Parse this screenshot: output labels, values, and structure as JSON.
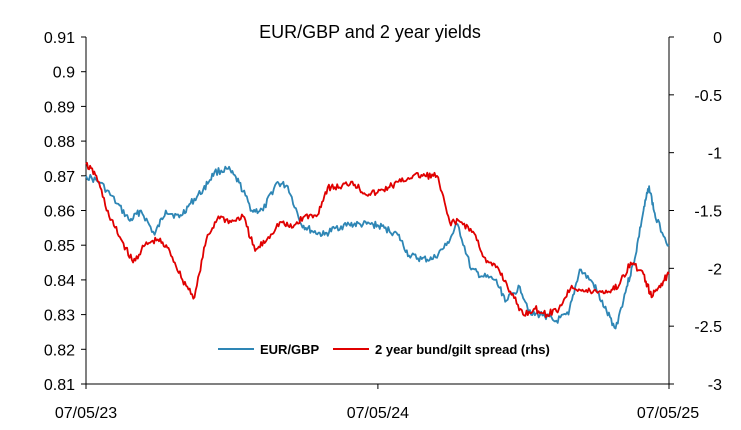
{
  "chart_data": {
    "type": "line",
    "title": "EUR/GBP and 2 year yields",
    "x_ticks": [
      "07/05/23",
      "07/05/24",
      "07/05/25"
    ],
    "x_range": [
      "07/05/23",
      "07/05/25"
    ],
    "y_left": {
      "ticks": [
        "0.91",
        "0.9",
        "0.89",
        "0.88",
        "0.87",
        "0.86",
        "0.85",
        "0.84",
        "0.83",
        "0.82",
        "0.81"
      ],
      "range": [
        0.81,
        0.91
      ]
    },
    "y_right": {
      "ticks": [
        "0",
        "-0.5",
        "-1",
        "-1.5",
        "-2",
        "-2.5",
        "-3"
      ],
      "range": [
        -3,
        0
      ]
    },
    "grid": false,
    "legend_position": "bottom-inside",
    "legend": [
      "EUR/GBP",
      "2 year bund/gilt spread (rhs)"
    ],
    "series": [
      {
        "name": "EUR/GBP",
        "axis": "left",
        "color": "#2E86B5",
        "points": [
          [
            "2023-05-07",
            0.87
          ],
          [
            "2023-05-25",
            0.868
          ],
          [
            "2023-06-15",
            0.862
          ],
          [
            "2023-07-01",
            0.857
          ],
          [
            "2023-07-15",
            0.86
          ],
          [
            "2023-08-01",
            0.853
          ],
          [
            "2023-08-15",
            0.86
          ],
          [
            "2023-09-01",
            0.858
          ],
          [
            "2023-09-15",
            0.862
          ],
          [
            "2023-10-01",
            0.866
          ],
          [
            "2023-10-15",
            0.871
          ],
          [
            "2023-11-01",
            0.872
          ],
          [
            "2023-11-15",
            0.868
          ],
          [
            "2023-12-01",
            0.86
          ],
          [
            "2023-12-15",
            0.86
          ],
          [
            "2024-01-01",
            0.868
          ],
          [
            "2024-01-15",
            0.867
          ],
          [
            "2024-02-01",
            0.856
          ],
          [
            "2024-02-15",
            0.854
          ],
          [
            "2024-03-01",
            0.853
          ],
          [
            "2024-03-15",
            0.855
          ],
          [
            "2024-04-01",
            0.856
          ],
          [
            "2024-04-15",
            0.856
          ],
          [
            "2024-05-01",
            0.856
          ],
          [
            "2024-05-15",
            0.855
          ],
          [
            "2024-06-01",
            0.853
          ],
          [
            "2024-06-15",
            0.847
          ],
          [
            "2024-07-01",
            0.846
          ],
          [
            "2024-07-15",
            0.846
          ],
          [
            "2024-08-01",
            0.85
          ],
          [
            "2024-08-15",
            0.856
          ],
          [
            "2024-09-01",
            0.843
          ],
          [
            "2024-09-15",
            0.841
          ],
          [
            "2024-10-01",
            0.84
          ],
          [
            "2024-10-15",
            0.834
          ],
          [
            "2024-11-01",
            0.838
          ],
          [
            "2024-11-15",
            0.83
          ],
          [
            "2024-12-01",
            0.83
          ],
          [
            "2024-12-15",
            0.828
          ],
          [
            "2025-01-01",
            0.83
          ],
          [
            "2025-01-15",
            0.843
          ],
          [
            "2025-02-01",
            0.839
          ],
          [
            "2025-02-15",
            0.832
          ],
          [
            "2025-03-01",
            0.826
          ],
          [
            "2025-03-15",
            0.838
          ],
          [
            "2025-03-25",
            0.846
          ],
          [
            "2025-04-05",
            0.86
          ],
          [
            "2025-04-12",
            0.867
          ],
          [
            "2025-04-20",
            0.858
          ],
          [
            "2025-05-07",
            0.85
          ]
        ]
      },
      {
        "name": "2 year bund/gilt spread (rhs)",
        "axis": "right",
        "color": "#E00000",
        "points": [
          [
            "2023-05-07",
            -1.1
          ],
          [
            "2023-05-20",
            -1.2
          ],
          [
            "2023-06-05",
            -1.55
          ],
          [
            "2023-06-20",
            -1.75
          ],
          [
            "2023-07-05",
            -1.95
          ],
          [
            "2023-07-20",
            -1.8
          ],
          [
            "2023-08-05",
            -1.75
          ],
          [
            "2023-08-20",
            -1.85
          ],
          [
            "2023-09-05",
            -2.1
          ],
          [
            "2023-09-20",
            -2.25
          ],
          [
            "2023-10-05",
            -1.75
          ],
          [
            "2023-10-20",
            -1.55
          ],
          [
            "2023-11-05",
            -1.6
          ],
          [
            "2023-11-20",
            -1.55
          ],
          [
            "2023-12-05",
            -1.85
          ],
          [
            "2023-12-20",
            -1.75
          ],
          [
            "2024-01-05",
            -1.6
          ],
          [
            "2024-01-20",
            -1.65
          ],
          [
            "2024-02-05",
            -1.55
          ],
          [
            "2024-02-20",
            -1.55
          ],
          [
            "2024-03-05",
            -1.3
          ],
          [
            "2024-03-20",
            -1.3
          ],
          [
            "2024-04-05",
            -1.25
          ],
          [
            "2024-04-20",
            -1.35
          ],
          [
            "2024-05-05",
            -1.35
          ],
          [
            "2024-05-20",
            -1.3
          ],
          [
            "2024-06-05",
            -1.25
          ],
          [
            "2024-06-20",
            -1.2
          ],
          [
            "2024-07-05",
            -1.2
          ],
          [
            "2024-07-20",
            -1.2
          ],
          [
            "2024-08-05",
            -1.6
          ],
          [
            "2024-08-20",
            -1.6
          ],
          [
            "2024-09-05",
            -1.7
          ],
          [
            "2024-09-20",
            -1.95
          ],
          [
            "2024-10-05",
            -2.0
          ],
          [
            "2024-10-20",
            -2.2
          ],
          [
            "2024-11-05",
            -2.4
          ],
          [
            "2024-11-20",
            -2.35
          ],
          [
            "2024-12-05",
            -2.4
          ],
          [
            "2024-12-20",
            -2.35
          ],
          [
            "2025-01-05",
            -2.15
          ],
          [
            "2025-01-20",
            -2.2
          ],
          [
            "2025-02-05",
            -2.2
          ],
          [
            "2025-02-20",
            -2.2
          ],
          [
            "2025-03-05",
            -2.15
          ],
          [
            "2025-03-20",
            -1.95
          ],
          [
            "2025-04-05",
            -2.05
          ],
          [
            "2025-04-15",
            -2.25
          ],
          [
            "2025-04-25",
            -2.15
          ],
          [
            "2025-05-07",
            -2.05
          ]
        ]
      }
    ]
  }
}
